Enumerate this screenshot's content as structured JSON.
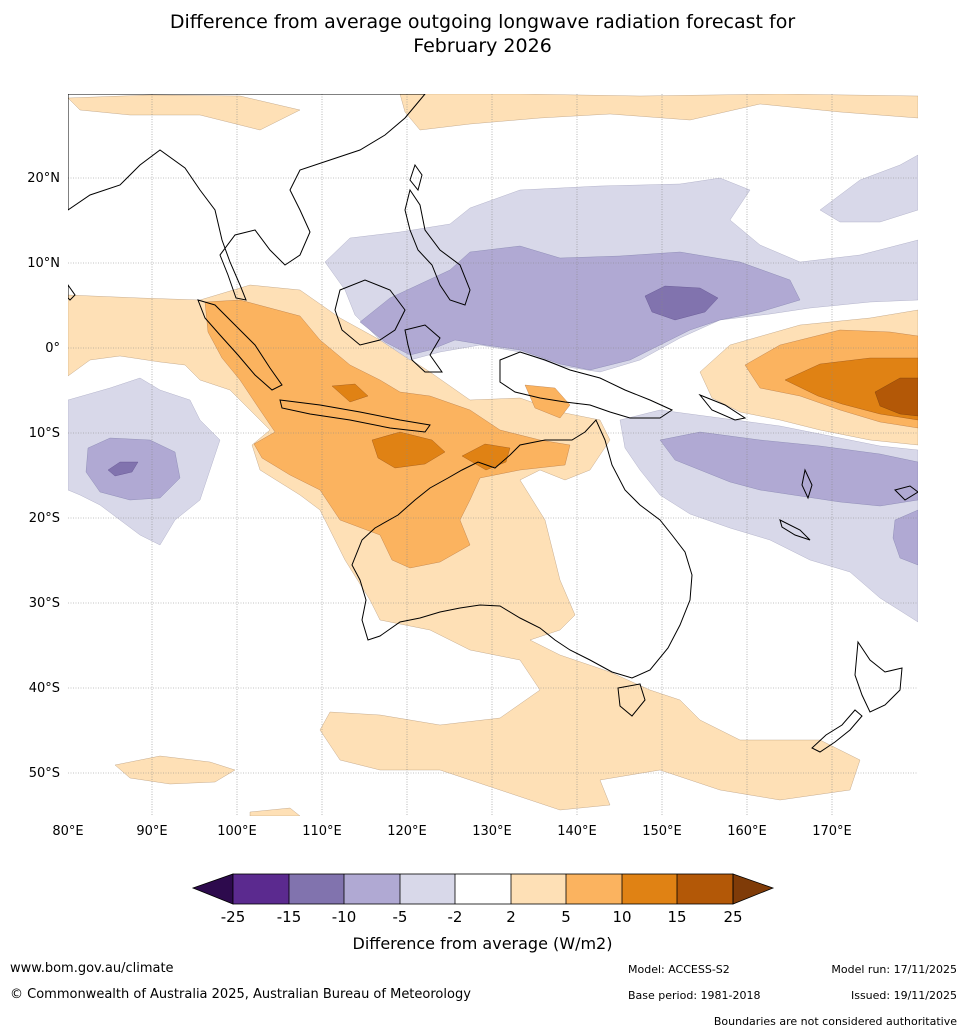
{
  "title": {
    "line1": "Difference from average outgoing longwave radiation forecast for",
    "line2": "February 2026"
  },
  "map": {
    "lat_labels": [
      "20°N",
      "10°N",
      "0°",
      "10°S",
      "20°S",
      "30°S",
      "40°S",
      "50°S"
    ],
    "lon_labels": [
      "80°E",
      "90°E",
      "100°E",
      "110°E",
      "120°E",
      "130°E",
      "140°E",
      "150°E",
      "160°E",
      "170°E"
    ]
  },
  "colorbar": {
    "ticks": [
      "-25",
      "-15",
      "-10",
      "-5",
      "-2",
      "2",
      "5",
      "10",
      "15",
      "25"
    ],
    "colors": [
      "#2d0a4d",
      "#5b2a8f",
      "#8173ae",
      "#b0a9d3",
      "#d8d8e9",
      "#ffffff",
      "#fee0b6",
      "#fbb35f",
      "#e08214",
      "#b35807",
      "#7f3b08"
    ],
    "title": "Difference from average (W/m2)"
  },
  "footer": {
    "website": "www.bom.gov.au/climate",
    "copyright": "© Commonwealth of Australia 2025, Australian Bureau of Meteorology",
    "model": "Model: ACCESS-S2",
    "base_period": "Base period: 1981-2018",
    "model_run": "Model run: 17/11/2025",
    "issued": "Issued: 19/11/2025",
    "disclaimer": "Boundaries are not considered authoritative"
  }
}
